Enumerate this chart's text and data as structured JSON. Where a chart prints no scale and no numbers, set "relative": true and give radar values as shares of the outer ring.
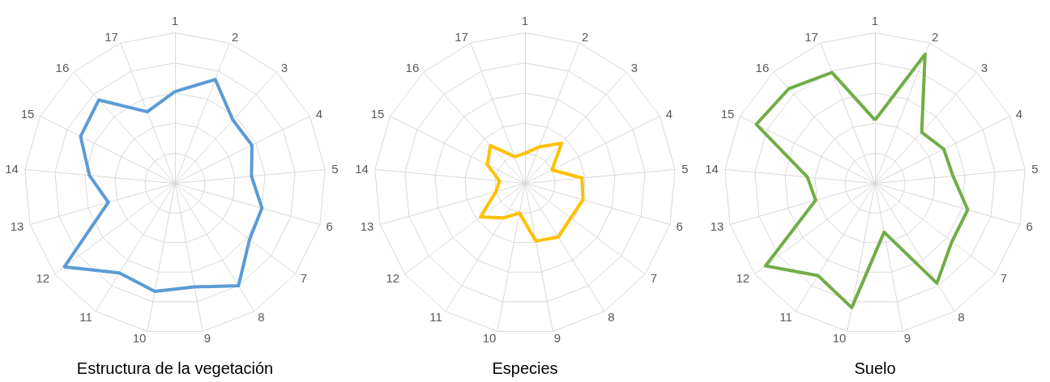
{
  "chart_data": [
    {
      "type": "radar",
      "title": "Estructura de la vegetación",
      "relative": true,
      "grid": true,
      "categories": [
        "1",
        "2",
        "3",
        "4",
        "5",
        "6",
        "7",
        "8",
        "9",
        "10",
        "11",
        "12",
        "13",
        "14",
        "15",
        "16",
        "17"
      ],
      "series": [
        {
          "color": "#5b9bd5",
          "values": [
            0.61,
            0.74,
            0.57,
            0.57,
            0.51,
            0.6,
            0.62,
            0.8,
            0.7,
            0.73,
            0.7,
            0.92,
            0.46,
            0.57,
            0.7,
            0.75,
            0.51
          ]
        }
      ]
    },
    {
      "type": "radar",
      "title": "Especies",
      "relative": true,
      "grid": true,
      "categories": [
        "1",
        "2",
        "3",
        "4",
        "5",
        "6",
        "7",
        "8",
        "9",
        "10",
        "11",
        "12",
        "13",
        "14",
        "15",
        "16",
        "17"
      ],
      "series": [
        {
          "color": "#ffc000",
          "values": [
            0.2,
            0.26,
            0.36,
            0.2,
            0.38,
            0.4,
            0.38,
            0.42,
            0.39,
            0.2,
            0.27,
            0.37,
            0.2,
            0.17,
            0.28,
            0.34,
            0.19
          ]
        }
      ]
    },
    {
      "type": "radar",
      "title": "Suelo",
      "relative": true,
      "grid": true,
      "categories": [
        "1",
        "2",
        "3",
        "4",
        "5",
        "6",
        "7",
        "8",
        "9",
        "10",
        "11",
        "12",
        "13",
        "14",
        "15",
        "16",
        "17"
      ],
      "series": [
        {
          "color": "#70ad47",
          "values": [
            0.42,
            0.92,
            0.46,
            0.51,
            0.52,
            0.64,
            0.64,
            0.78,
            0.33,
            0.84,
            0.72,
            0.91,
            0.41,
            0.45,
            0.88,
            0.85,
            0.79
          ]
        }
      ]
    }
  ]
}
